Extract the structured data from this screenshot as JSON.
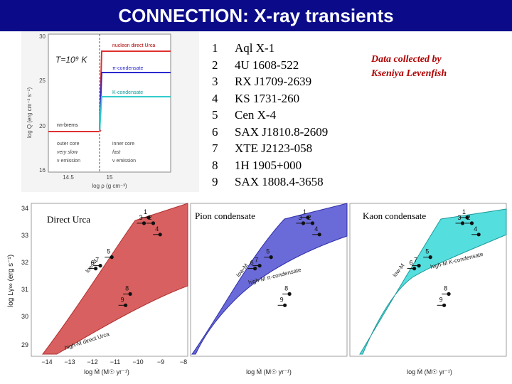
{
  "title": "CONNECTION: X-ray transients",
  "sources": [
    {
      "num": "1",
      "name": "Aql X-1"
    },
    {
      "num": "2",
      "name": "4U 1608-522"
    },
    {
      "num": "3",
      "name": "RX J1709-2639"
    },
    {
      "num": "4",
      "name": "KS 1731-260"
    },
    {
      "num": "5",
      "name": "Cen X-4"
    },
    {
      "num": "6",
      "name": "SAX J1810.8-2609"
    },
    {
      "num": "7",
      "name": "XTE J2123-058"
    },
    {
      "num": "8",
      "name": "1H 1905+000"
    },
    {
      "num": "9",
      "name": "SAX 1808.4-3658"
    }
  ],
  "credit": {
    "line1": "Data collected by",
    "line2": "Kseniya Levenfish"
  },
  "emissivity_plot": {
    "temperature_label": "T=10⁹ K",
    "legend": [
      "nucleon direct Urca",
      "π-condensate",
      "K-condensate",
      "nn-brems"
    ],
    "regions": {
      "outer_core": [
        "outer core",
        "very slow",
        "ν emission"
      ],
      "inner_core": [
        "inner core",
        "fast",
        "ν emission"
      ]
    },
    "ylabel": "log Q (erg cm⁻³ s⁻¹)",
    "xlabel": "log ρ (g cm⁻³)",
    "yticks": [
      "30",
      "25",
      "20",
      "16"
    ],
    "xticks": [
      "14.5",
      "15"
    ],
    "colors": {
      "direct_urca": "#e03030",
      "pion": "#2a2ad0",
      "kaon": "#33cccc",
      "brems": "#e03030"
    }
  },
  "panels": [
    {
      "label": "Direct Urca",
      "band_label": "high-M direct Urca",
      "low_label": "low-M",
      "fill": "#d96060",
      "hatch": "#b03030"
    },
    {
      "label": "Pion condensate",
      "band_label": "high-M π-condensate",
      "low_label": "low-M",
      "fill": "#6a6ad8",
      "hatch": "#2f2fa8"
    },
    {
      "label": "Kaon condensate",
      "band_label": "high-M K-condensate",
      "low_label": "low-M",
      "fill": "#55dede",
      "hatch": "#1f9a9a"
    }
  ],
  "panel_axes": {
    "ylabel": "log Lγ∞ (erg s⁻¹)",
    "xlabel": "log Ṁ (M☉ yr⁻¹)",
    "yticks": [
      "34",
      "33",
      "32",
      "31",
      "30",
      "29"
    ],
    "xticks": [
      "−14",
      "−13",
      "−12",
      "−11",
      "−10",
      "−9",
      "−8"
    ]
  },
  "source_points": [
    {
      "label": "1",
      "mdot": -9.6,
      "l": 33.7
    },
    {
      "label": "2",
      "mdot": -9.4,
      "l": 33.5
    },
    {
      "label": "3",
      "mdot": -9.8,
      "l": 33.5
    },
    {
      "label": "4",
      "mdot": -9.1,
      "l": 33.1
    },
    {
      "label": "5",
      "mdot": -11.2,
      "l": 32.3
    },
    {
      "label": "6",
      "mdot": -11.9,
      "l": 31.9
    },
    {
      "label": "7",
      "mdot": -11.7,
      "l": 32.0
    },
    {
      "label": "8",
      "mdot": -10.4,
      "l": 31.0
    },
    {
      "label": "9",
      "mdot": -10.6,
      "l": 30.6
    }
  ]
}
